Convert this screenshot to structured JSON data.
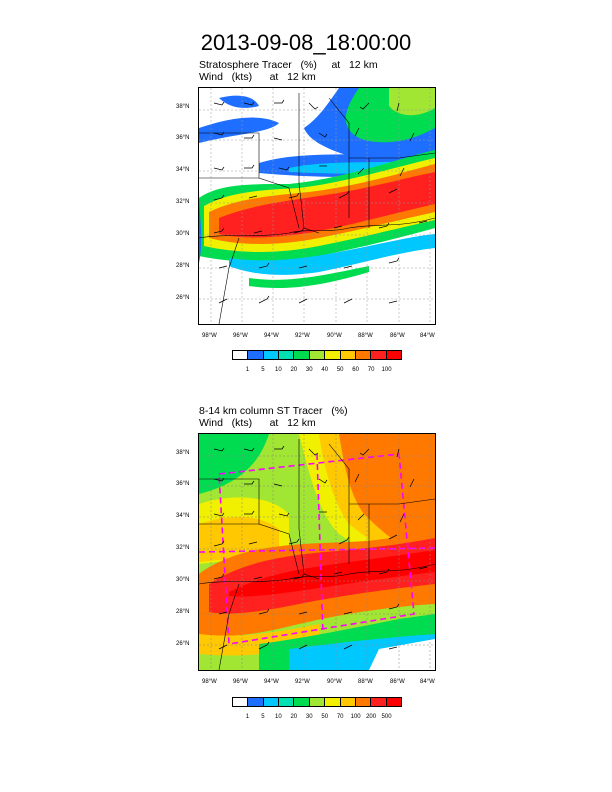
{
  "title": "2013-09-08_18:00:00",
  "panels": [
    {
      "line1": "Stratosphere Tracer   (%)     at   12 km",
      "line2": "Wind   (kts)      at   12 km",
      "legend_labels": [
        "1",
        "5",
        "10",
        "20",
        "30",
        "40",
        "50",
        "60",
        "70",
        "100"
      ],
      "legend_colors": [
        "#ffffff",
        "#1e6eff",
        "#00c8ff",
        "#00e0b0",
        "#00dc50",
        "#a0e632",
        "#f0f000",
        "#ffc800",
        "#ff7800",
        "#ff2020",
        "#ff0000"
      ]
    },
    {
      "line1": "8-14 km column ST Tracer   (%)",
      "line2": "Wind   (kts)      at   12 km",
      "legend_labels": [
        "1",
        "5",
        "10",
        "20",
        "30",
        "50",
        "70",
        "100",
        "200",
        "500"
      ],
      "legend_colors": [
        "#ffffff",
        "#1e6eff",
        "#00c8ff",
        "#00e0b0",
        "#00dc50",
        "#a0e632",
        "#f0f000",
        "#ffc800",
        "#ff7800",
        "#ff2020",
        "#ff0000"
      ]
    }
  ],
  "lat_labels": [
    "38°N",
    "36°N",
    "34°N",
    "32°N",
    "30°N",
    "28°N",
    "26°N"
  ],
  "lon_labels": [
    "98°W",
    "96°W",
    "94°W",
    "92°W",
    "90°W",
    "88°W",
    "86°W",
    "84°W"
  ]
}
